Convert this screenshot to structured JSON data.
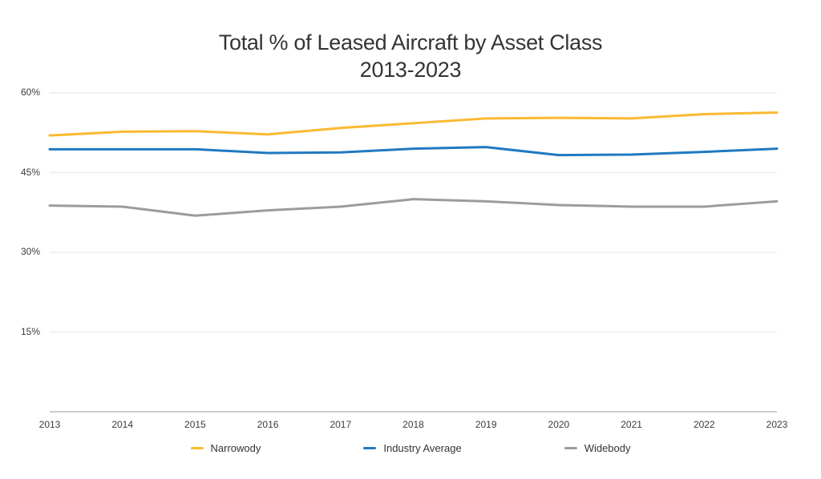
{
  "title": {
    "line1": "Total % of Leased Aircraft by Asset Class",
    "line2": "2013-2023"
  },
  "chart_data": {
    "type": "line",
    "x": [
      2013,
      2014,
      2015,
      2016,
      2017,
      2018,
      2019,
      2020,
      2021,
      2022,
      2023
    ],
    "series": [
      {
        "name": "Narrowody",
        "color": "#FBB932",
        "values": [
          52.0,
          52.7,
          52.8,
          52.2,
          53.4,
          54.3,
          55.2,
          55.3,
          55.2,
          56.0,
          56.3
        ]
      },
      {
        "name": "Industry Average",
        "color": "#2079C1",
        "values": [
          49.4,
          49.4,
          49.4,
          48.7,
          48.8,
          49.5,
          49.8,
          48.3,
          48.4,
          48.9,
          49.5
        ]
      },
      {
        "name": "Widebody",
        "color": "#9C9C9C",
        "values": [
          38.8,
          38.6,
          36.9,
          37.9,
          38.6,
          40.0,
          39.6,
          38.9,
          38.6,
          38.6,
          39.6
        ]
      }
    ],
    "y_ticks": [
      {
        "value": 60,
        "label": "60%"
      },
      {
        "value": 45,
        "label": "45%"
      },
      {
        "value": 30,
        "label": "30%"
      },
      {
        "value": 15,
        "label": "15%"
      }
    ],
    "ylim": [
      0,
      60
    ],
    "xlabel": "",
    "ylabel": "",
    "grid": "horizontal",
    "legend_position": "bottom"
  },
  "colors": {
    "background": "#ffffff",
    "gridline": "#f1f1f1",
    "axis_line": "#9b9b9b",
    "tick_text": "#3c3c3c",
    "title_text": "#343434"
  }
}
